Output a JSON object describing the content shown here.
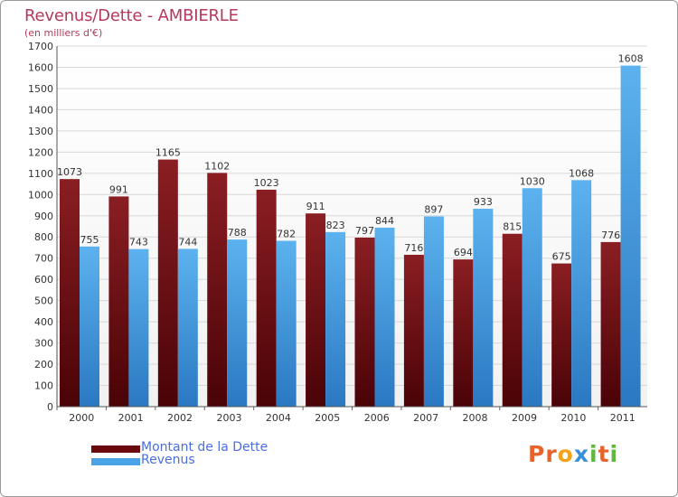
{
  "header": {
    "title": "Revenus/Dette - AMBIERLE",
    "subtitle": "(en milliers d'€)"
  },
  "chart_data": {
    "type": "bar",
    "title": "Revenus/Dette - AMBIERLE",
    "ylabel": "(en milliers d'€)",
    "categories": [
      "2000",
      "2001",
      "2002",
      "2003",
      "2004",
      "2005",
      "2006",
      "2007",
      "2008",
      "2009",
      "2010",
      "2011"
    ],
    "series": [
      {
        "name": "Montant de la Dette",
        "color": "#7a1419",
        "values": [
          1073,
          991,
          1165,
          1102,
          1023,
          911,
          797,
          716,
          694,
          815,
          675,
          776
        ]
      },
      {
        "name": "Revenus",
        "color": "#4aa3e6",
        "values": [
          755,
          743,
          744,
          788,
          782,
          823,
          844,
          897,
          933,
          1030,
          1068,
          1608
        ]
      }
    ],
    "ylim": [
      0,
      1700
    ],
    "yticks": [
      "0",
      "100",
      "200",
      "300",
      "400",
      "500",
      "600",
      "700",
      "800",
      "900",
      "1000",
      "1100",
      "1200",
      "1300",
      "1400",
      "1500",
      "1600",
      "1700"
    ],
    "grid": true,
    "legend": "bottom-left"
  },
  "legend": {
    "debt_label": "Montant de la Dette",
    "revenue_label": "Revenus"
  },
  "logo": {
    "text": "Proxiti",
    "letter_colors": [
      "#e8632b",
      "#e8632b",
      "#f2a31b",
      "#3a8fd9",
      "#5fb83b",
      "#e8632b",
      "#5fb83b"
    ]
  }
}
